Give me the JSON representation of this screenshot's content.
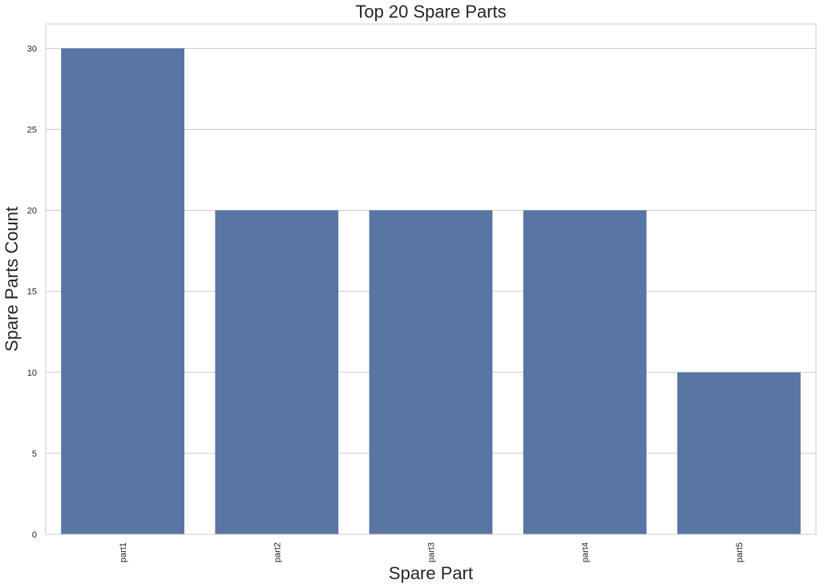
{
  "chart_data": {
    "type": "bar",
    "title": "Top 20 Spare Parts",
    "xlabel": "Spare Part",
    "ylabel": "Spare Parts Count",
    "categories": [
      "part1",
      "part2",
      "part3",
      "part4",
      "part5"
    ],
    "values": [
      30,
      20,
      20,
      20,
      10
    ],
    "ylim": [
      0,
      31.5
    ],
    "yticks": [
      0,
      5,
      10,
      15,
      20,
      25,
      30
    ],
    "grid": true,
    "x_tick_rotation": "vertical",
    "bar_color": "#5875a4",
    "grid_color": "#cccccc",
    "text_color": "#262626"
  }
}
